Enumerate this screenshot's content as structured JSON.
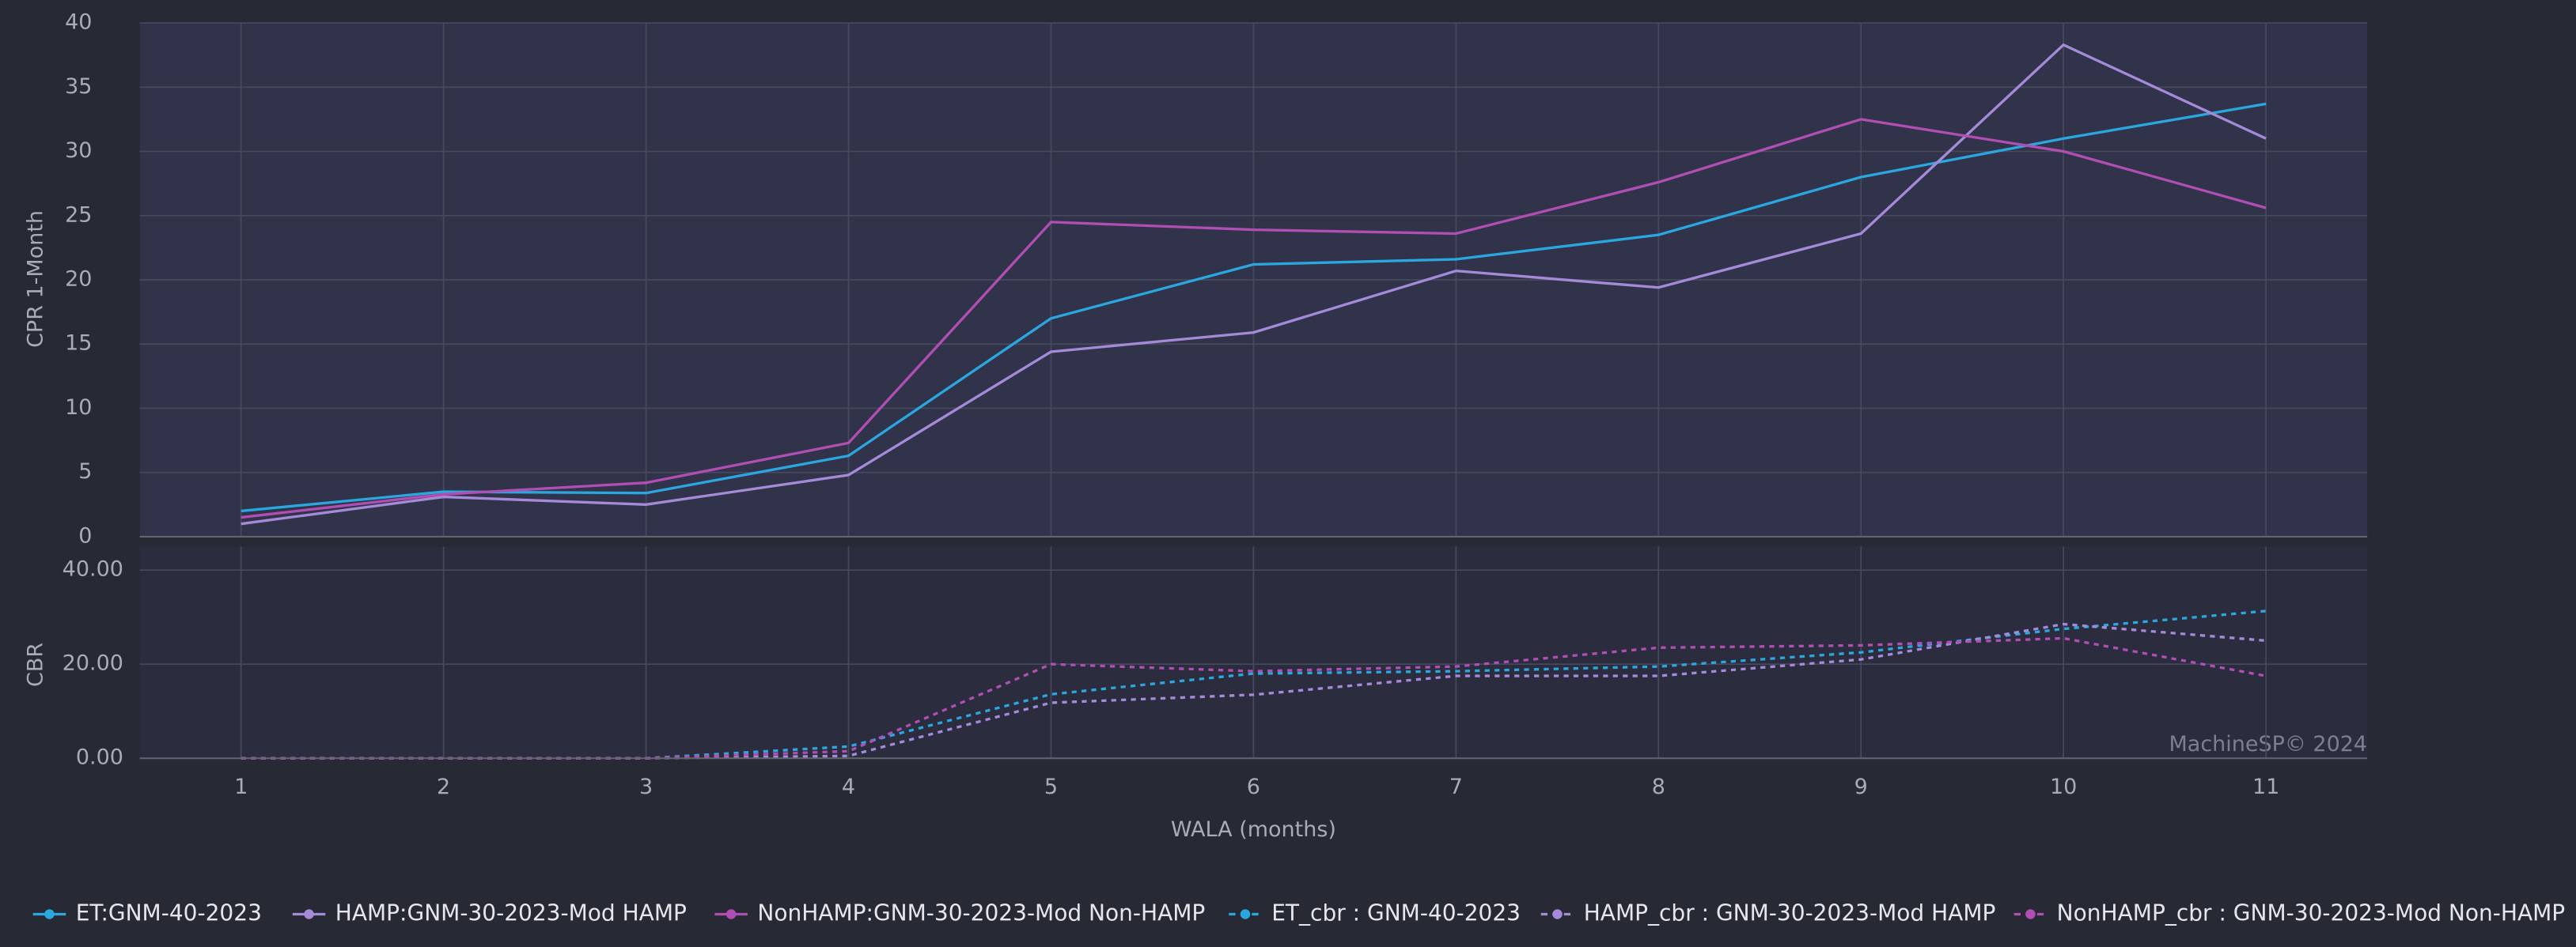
{
  "chart_data": [
    {
      "type": "line",
      "ylabel": "CPR 1-Month",
      "x": [
        1,
        2,
        3,
        4,
        5,
        6,
        7,
        8,
        9,
        10,
        11
      ],
      "xlim": [
        0.5,
        11.5
      ],
      "ylim": [
        0,
        40
      ],
      "yticks": [
        0,
        5,
        10,
        15,
        20,
        25,
        30,
        35,
        40
      ],
      "grid": true,
      "series": [
        {
          "name": "ET:GNM-40-2023",
          "color": "#2ba7e0",
          "style": "solid",
          "values": [
            2.0,
            3.5,
            3.4,
            6.3,
            17.0,
            21.2,
            21.6,
            23.5,
            28.0,
            31.0,
            33.7
          ]
        },
        {
          "name": "HAMP:GNM-30-2023-Mod HAMP",
          "color": "#a58ad9",
          "style": "solid",
          "values": [
            1.0,
            3.1,
            2.5,
            4.8,
            14.4,
            15.9,
            20.7,
            19.4,
            23.6,
            38.3,
            31.0
          ]
        },
        {
          "name": "NonHAMP:GNM-30-2023-Mod Non-HAMP",
          "color": "#b14eb3",
          "style": "solid",
          "values": [
            1.5,
            3.3,
            4.2,
            7.3,
            24.5,
            23.9,
            23.6,
            27.6,
            32.5,
            30.0,
            25.6
          ]
        }
      ]
    },
    {
      "type": "line",
      "ylabel": "CBR",
      "xlabel": "WALA (months)",
      "annotation": "MachineSP© 2024",
      "x": [
        1,
        2,
        3,
        4,
        5,
        6,
        7,
        8,
        9,
        10,
        11
      ],
      "xlim": [
        0.5,
        11.5
      ],
      "xticks": [
        1,
        2,
        3,
        4,
        5,
        6,
        7,
        8,
        9,
        10,
        11
      ],
      "ylim": [
        0,
        45
      ],
      "yticks": [
        {
          "value": 0,
          "label": "0.00"
        },
        {
          "value": 20,
          "label": "20.00"
        },
        {
          "value": 40,
          "label": "40.00"
        }
      ],
      "grid": true,
      "series": [
        {
          "name": "ET_cbr : GNM-40-2023",
          "color": "#2ba7e0",
          "style": "dashed",
          "values": [
            0,
            0,
            0,
            2.5,
            13.6,
            18.0,
            18.5,
            19.5,
            22.5,
            27.5,
            31.3
          ]
        },
        {
          "name": "HAMP_cbr : GNM-30-2023-Mod HAMP",
          "color": "#a58ad9",
          "style": "dashed",
          "values": [
            0,
            0,
            0,
            0.5,
            11.8,
            13.5,
            17.5,
            17.5,
            21.0,
            28.5,
            25.0
          ]
        },
        {
          "name": "NonHAMP_cbr : GNM-30-2023-Mod Non-HAMP",
          "color": "#b14eb3",
          "style": "dashed",
          "values": [
            0,
            0,
            0,
            1.5,
            20.0,
            18.5,
            19.5,
            23.5,
            24.0,
            25.5,
            17.5
          ]
        }
      ]
    }
  ]
}
